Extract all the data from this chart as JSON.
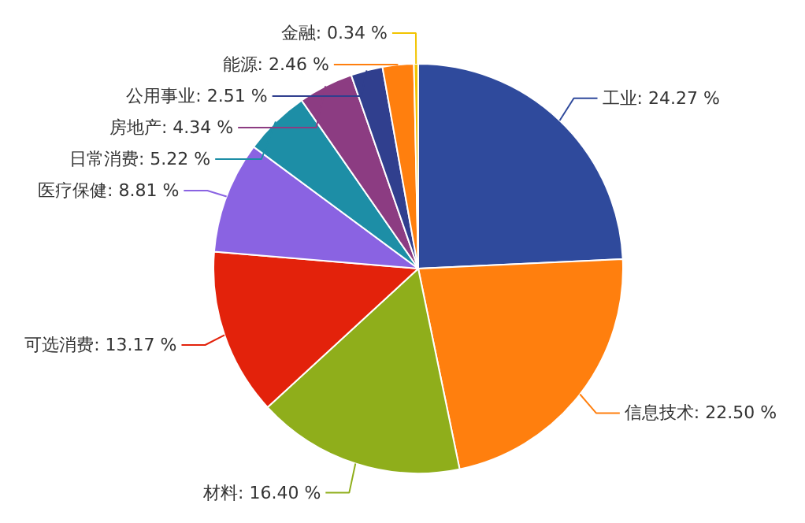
{
  "chart_data": {
    "type": "pie",
    "categories": [
      "工业",
      "信息技术",
      "材料",
      "可选消费",
      "医疗保健",
      "日常消费",
      "房地产",
      "公用事业",
      "能源",
      "金融"
    ],
    "values": [
      24.27,
      22.5,
      16.4,
      13.17,
      8.81,
      5.22,
      4.34,
      2.51,
      2.46,
      0.34
    ],
    "colors": [
      "#2f4a9c",
      "#ff7f0e",
      "#8fae1b",
      "#e3220b",
      "#8a63e2",
      "#1d8ea6",
      "#8c3c82",
      "#303f8e",
      "#ff7f0e",
      "#f2c400"
    ],
    "value_labels": [
      "24.27 %",
      "22.50 %",
      "16.40 %",
      "13.17 %",
      "8.81 %",
      "5.22 %",
      "4.34 %",
      "2.51 %",
      "2.46 %",
      "0.34 %"
    ]
  }
}
